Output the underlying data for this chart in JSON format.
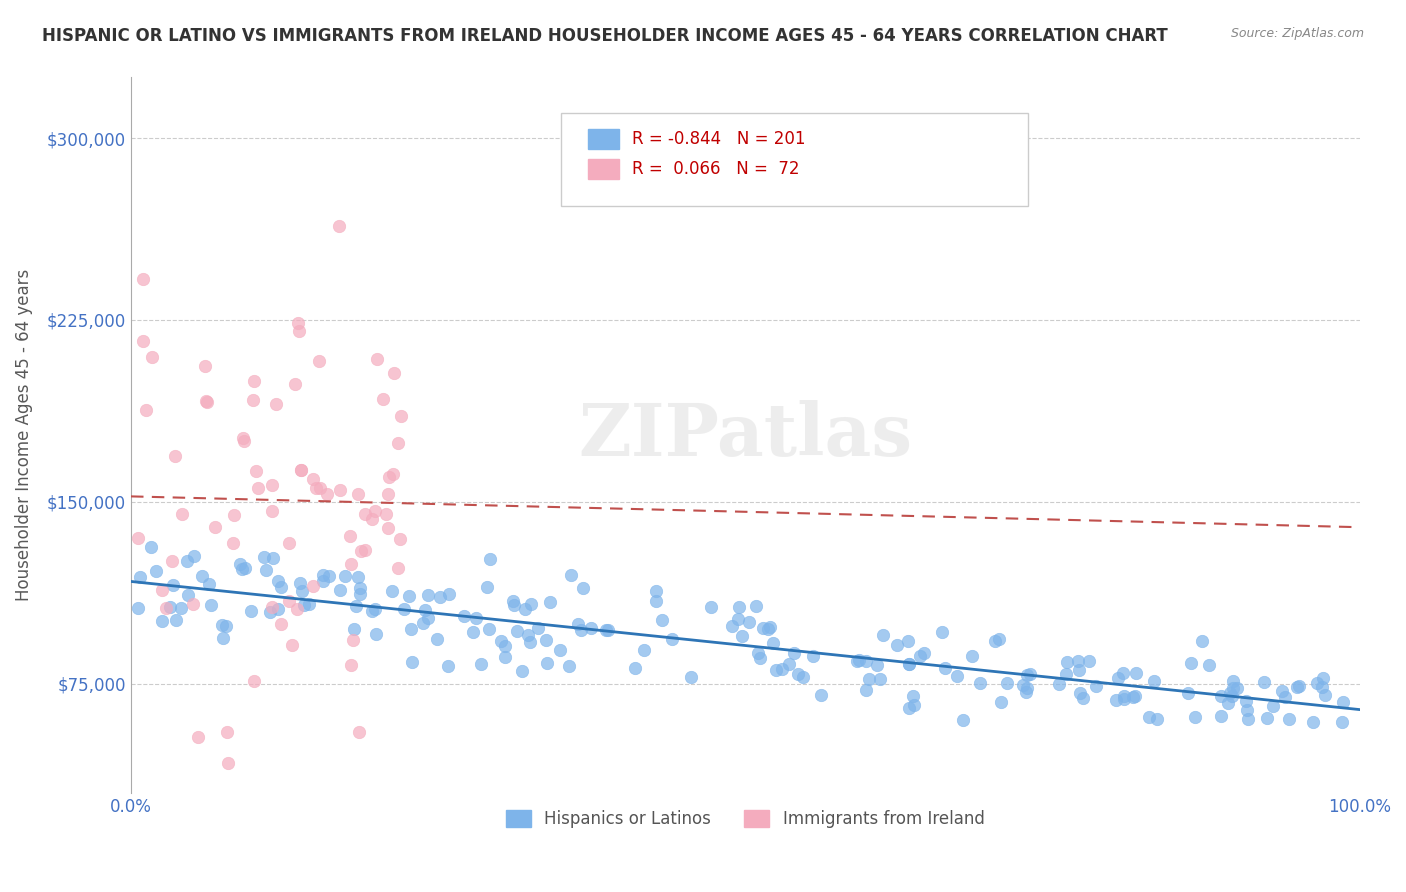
{
  "title": "HISPANIC OR LATINO VS IMMIGRANTS FROM IRELAND HOUSEHOLDER INCOME AGES 45 - 64 YEARS CORRELATION CHART",
  "source": "Source: ZipAtlas.com",
  "ylabel": "Householder Income Ages 45 - 64 years",
  "xlim": [
    0.0,
    1.0
  ],
  "ylim": [
    30000,
    325000
  ],
  "yticks": [
    75000,
    150000,
    225000,
    300000
  ],
  "ytick_labels": [
    "$75,000",
    "$150,000",
    "$225,000",
    "$300,000"
  ],
  "xticks": [
    0.0,
    0.25,
    0.5,
    0.75,
    1.0
  ],
  "xtick_labels": [
    "0.0%",
    "",
    "",
    "",
    "100.0%"
  ],
  "blue_R": -0.844,
  "blue_N": 201,
  "pink_R": 0.066,
  "pink_N": 72,
  "blue_color": "#7EB4EA",
  "pink_color": "#F4ACBE",
  "blue_line_color": "#2E75B6",
  "pink_line_color": "#C0504D",
  "watermark": "ZIPatlas",
  "legend_label_blue": "Hispanics or Latinos",
  "legend_label_pink": "Immigrants from Ireland",
  "background_color": "#FFFFFF",
  "title_fontsize": 12,
  "axis_color": "#4472C4",
  "ylabel_color": "#595959"
}
